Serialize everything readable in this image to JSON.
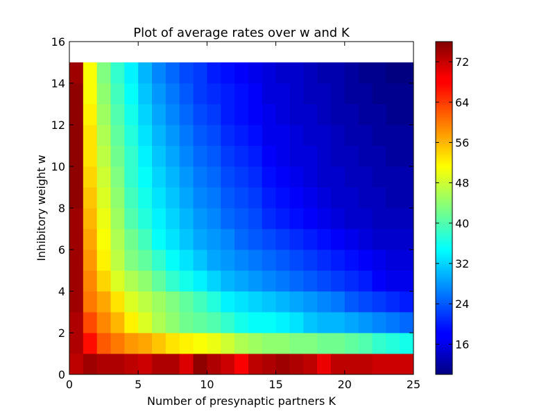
{
  "chart_data": {
    "type": "heatmap",
    "title": "Plot of average rates over w and K",
    "xlabel": "Number of presynaptic partners K",
    "ylabel": "Inhibitory weight w",
    "xlim": [
      0,
      25
    ],
    "ylim": [
      0,
      16
    ],
    "x_ticks": [
      0,
      5,
      10,
      15,
      20,
      25
    ],
    "y_ticks": [
      0,
      2,
      4,
      6,
      8,
      10,
      12,
      14,
      16
    ],
    "colormap": "jet",
    "color_range": [
      10,
      76
    ],
    "colorbar_ticks": [
      16,
      24,
      32,
      40,
      48,
      56,
      64,
      72
    ],
    "grid": false,
    "cells": {
      "x_edges": [
        0,
        1,
        2,
        3,
        4,
        5,
        6,
        7,
        8,
        9,
        10,
        11,
        12,
        13,
        14,
        15,
        16,
        17,
        18,
        19,
        20,
        21,
        22,
        23,
        24,
        25
      ],
      "y_edges": [
        0,
        1,
        2,
        3,
        4,
        5,
        6,
        7,
        8,
        9,
        10,
        11,
        12,
        13,
        14,
        15
      ],
      "values": [
        [
          72,
          74,
          73,
          73,
          72,
          71,
          73,
          73,
          70,
          75,
          73,
          71,
          68,
          72,
          73,
          74,
          73,
          72,
          69,
          72,
          72,
          72,
          71,
          71,
          71
        ],
        [
          73,
          67,
          62,
          60,
          58,
          57,
          55,
          53,
          52,
          51,
          50,
          48,
          46,
          45,
          44,
          44,
          43,
          43,
          42,
          42,
          41,
          40,
          38,
          37,
          36
        ],
        [
          73,
          63,
          59,
          56,
          52,
          49,
          46,
          44,
          42,
          41,
          40,
          38,
          36,
          35,
          35,
          34,
          33,
          31,
          30,
          30,
          29,
          28,
          27,
          26,
          25
        ],
        [
          74,
          60,
          57,
          53,
          49,
          47,
          45,
          43,
          41,
          39,
          37,
          34,
          33,
          32,
          31,
          30,
          29,
          28,
          27,
          26,
          24,
          23,
          22,
          21,
          20
        ],
        [
          74,
          59,
          54,
          49,
          46,
          44,
          41,
          38,
          36,
          34,
          32,
          30,
          29,
          28,
          27,
          26,
          25,
          24,
          23,
          22,
          21,
          20,
          18,
          17,
          17
        ],
        [
          74,
          58,
          52,
          47,
          43,
          41,
          38,
          35,
          33,
          31,
          29,
          28,
          27,
          26,
          25,
          24,
          23,
          22,
          21,
          20,
          19,
          18,
          17,
          16,
          16
        ],
        [
          74,
          57,
          51,
          46,
          42,
          39,
          35,
          33,
          31,
          29,
          28,
          27,
          25,
          24,
          23,
          22,
          21,
          20,
          19,
          18,
          17,
          16,
          15,
          15,
          15
        ],
        [
          74,
          56,
          50,
          45,
          40,
          37,
          34,
          32,
          30,
          28,
          27,
          25,
          24,
          23,
          21,
          20,
          19,
          18,
          17,
          16,
          15,
          15,
          14,
          14,
          14
        ],
        [
          75,
          55,
          49,
          44,
          39,
          36,
          33,
          31,
          29,
          27,
          26,
          24,
          23,
          22,
          20,
          19,
          18,
          17,
          16,
          15,
          15,
          14,
          14,
          13,
          13
        ],
        [
          75,
          54,
          48,
          43,
          38,
          35,
          32,
          30,
          28,
          26,
          25,
          23,
          22,
          21,
          19,
          18,
          17,
          16,
          15,
          15,
          14,
          14,
          13,
          13,
          13
        ],
        [
          75,
          53,
          47,
          42,
          38,
          34,
          31,
          29,
          27,
          25,
          24,
          22,
          21,
          20,
          18,
          17,
          16,
          16,
          15,
          14,
          14,
          13,
          13,
          12,
          12
        ],
        [
          75,
          53,
          46,
          41,
          37,
          33,
          30,
          28,
          26,
          24,
          23,
          21,
          20,
          19,
          17,
          17,
          16,
          15,
          15,
          14,
          13,
          13,
          12,
          12,
          12
        ],
        [
          75,
          52,
          45,
          40,
          36,
          32,
          29,
          27,
          25,
          23,
          22,
          20,
          19,
          18,
          17,
          16,
          15,
          15,
          14,
          13,
          13,
          12,
          12,
          11,
          11
        ],
        [
          75,
          51,
          44,
          39,
          35,
          31,
          28,
          26,
          24,
          22,
          21,
          20,
          19,
          18,
          16,
          16,
          15,
          14,
          14,
          13,
          12,
          12,
          11,
          11,
          11
        ],
        [
          74,
          51,
          43,
          38,
          34,
          30,
          27,
          25,
          23,
          22,
          20,
          19,
          18,
          17,
          16,
          15,
          15,
          14,
          13,
          13,
          12,
          11,
          11,
          10,
          10
        ]
      ]
    }
  }
}
